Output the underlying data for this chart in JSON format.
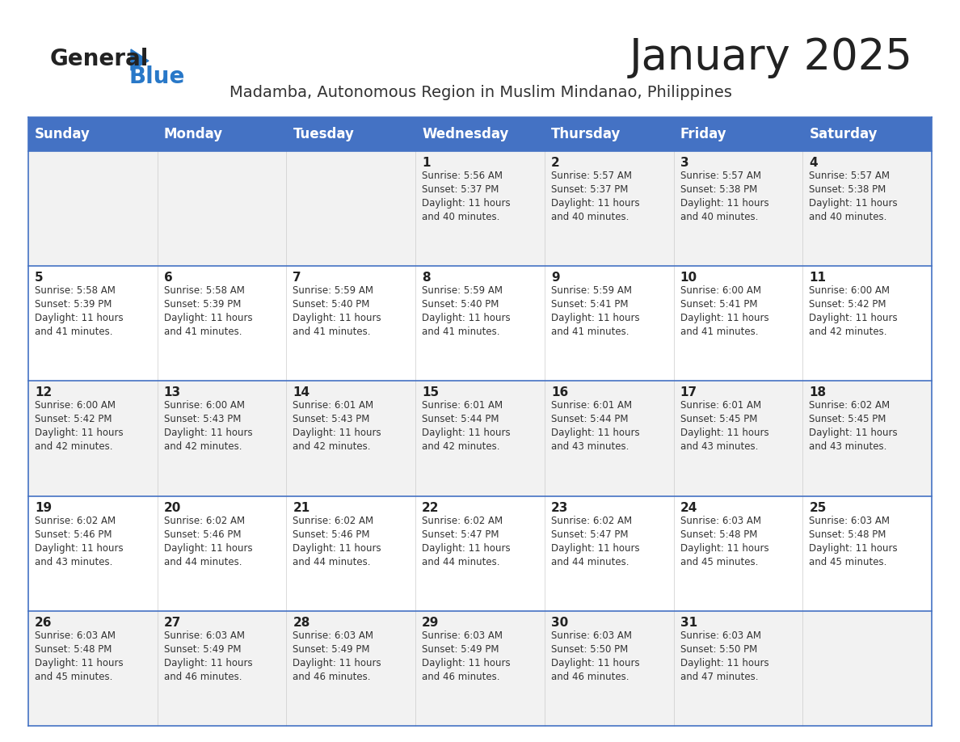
{
  "title": "January 2025",
  "subtitle": "Madamba, Autonomous Region in Muslim Mindanao, Philippines",
  "header_bg": "#4472C4",
  "header_text_color": "#FFFFFF",
  "row_bg_odd": "#F2F2F2",
  "row_bg_even": "#FFFFFF",
  "day_headers": [
    "Sunday",
    "Monday",
    "Tuesday",
    "Wednesday",
    "Thursday",
    "Friday",
    "Saturday"
  ],
  "calendar": [
    [
      {
        "day": "",
        "info": ""
      },
      {
        "day": "",
        "info": ""
      },
      {
        "day": "",
        "info": ""
      },
      {
        "day": "1",
        "info": "Sunrise: 5:56 AM\nSunset: 5:37 PM\nDaylight: 11 hours\nand 40 minutes."
      },
      {
        "day": "2",
        "info": "Sunrise: 5:57 AM\nSunset: 5:37 PM\nDaylight: 11 hours\nand 40 minutes."
      },
      {
        "day": "3",
        "info": "Sunrise: 5:57 AM\nSunset: 5:38 PM\nDaylight: 11 hours\nand 40 minutes."
      },
      {
        "day": "4",
        "info": "Sunrise: 5:57 AM\nSunset: 5:38 PM\nDaylight: 11 hours\nand 40 minutes."
      }
    ],
    [
      {
        "day": "5",
        "info": "Sunrise: 5:58 AM\nSunset: 5:39 PM\nDaylight: 11 hours\nand 41 minutes."
      },
      {
        "day": "6",
        "info": "Sunrise: 5:58 AM\nSunset: 5:39 PM\nDaylight: 11 hours\nand 41 minutes."
      },
      {
        "day": "7",
        "info": "Sunrise: 5:59 AM\nSunset: 5:40 PM\nDaylight: 11 hours\nand 41 minutes."
      },
      {
        "day": "8",
        "info": "Sunrise: 5:59 AM\nSunset: 5:40 PM\nDaylight: 11 hours\nand 41 minutes."
      },
      {
        "day": "9",
        "info": "Sunrise: 5:59 AM\nSunset: 5:41 PM\nDaylight: 11 hours\nand 41 minutes."
      },
      {
        "day": "10",
        "info": "Sunrise: 6:00 AM\nSunset: 5:41 PM\nDaylight: 11 hours\nand 41 minutes."
      },
      {
        "day": "11",
        "info": "Sunrise: 6:00 AM\nSunset: 5:42 PM\nDaylight: 11 hours\nand 42 minutes."
      }
    ],
    [
      {
        "day": "12",
        "info": "Sunrise: 6:00 AM\nSunset: 5:42 PM\nDaylight: 11 hours\nand 42 minutes."
      },
      {
        "day": "13",
        "info": "Sunrise: 6:00 AM\nSunset: 5:43 PM\nDaylight: 11 hours\nand 42 minutes."
      },
      {
        "day": "14",
        "info": "Sunrise: 6:01 AM\nSunset: 5:43 PM\nDaylight: 11 hours\nand 42 minutes."
      },
      {
        "day": "15",
        "info": "Sunrise: 6:01 AM\nSunset: 5:44 PM\nDaylight: 11 hours\nand 42 minutes."
      },
      {
        "day": "16",
        "info": "Sunrise: 6:01 AM\nSunset: 5:44 PM\nDaylight: 11 hours\nand 43 minutes."
      },
      {
        "day": "17",
        "info": "Sunrise: 6:01 AM\nSunset: 5:45 PM\nDaylight: 11 hours\nand 43 minutes."
      },
      {
        "day": "18",
        "info": "Sunrise: 6:02 AM\nSunset: 5:45 PM\nDaylight: 11 hours\nand 43 minutes."
      }
    ],
    [
      {
        "day": "19",
        "info": "Sunrise: 6:02 AM\nSunset: 5:46 PM\nDaylight: 11 hours\nand 43 minutes."
      },
      {
        "day": "20",
        "info": "Sunrise: 6:02 AM\nSunset: 5:46 PM\nDaylight: 11 hours\nand 44 minutes."
      },
      {
        "day": "21",
        "info": "Sunrise: 6:02 AM\nSunset: 5:46 PM\nDaylight: 11 hours\nand 44 minutes."
      },
      {
        "day": "22",
        "info": "Sunrise: 6:02 AM\nSunset: 5:47 PM\nDaylight: 11 hours\nand 44 minutes."
      },
      {
        "day": "23",
        "info": "Sunrise: 6:02 AM\nSunset: 5:47 PM\nDaylight: 11 hours\nand 44 minutes."
      },
      {
        "day": "24",
        "info": "Sunrise: 6:03 AM\nSunset: 5:48 PM\nDaylight: 11 hours\nand 45 minutes."
      },
      {
        "day": "25",
        "info": "Sunrise: 6:03 AM\nSunset: 5:48 PM\nDaylight: 11 hours\nand 45 minutes."
      }
    ],
    [
      {
        "day": "26",
        "info": "Sunrise: 6:03 AM\nSunset: 5:48 PM\nDaylight: 11 hours\nand 45 minutes."
      },
      {
        "day": "27",
        "info": "Sunrise: 6:03 AM\nSunset: 5:49 PM\nDaylight: 11 hours\nand 46 minutes."
      },
      {
        "day": "28",
        "info": "Sunrise: 6:03 AM\nSunset: 5:49 PM\nDaylight: 11 hours\nand 46 minutes."
      },
      {
        "day": "29",
        "info": "Sunrise: 6:03 AM\nSunset: 5:49 PM\nDaylight: 11 hours\nand 46 minutes."
      },
      {
        "day": "30",
        "info": "Sunrise: 6:03 AM\nSunset: 5:50 PM\nDaylight: 11 hours\nand 46 minutes."
      },
      {
        "day": "31",
        "info": "Sunrise: 6:03 AM\nSunset: 5:50 PM\nDaylight: 11 hours\nand 47 minutes."
      },
      {
        "day": "",
        "info": ""
      }
    ]
  ],
  "logo_text1": "General",
  "logo_text2": "Blue",
  "logo_text1_color": "#222222",
  "logo_text2_color": "#2878C8",
  "logo_triangle_color": "#2878C8",
  "cell_border_color": "#4472C4",
  "cell_text_color": "#333333",
  "day_num_color": "#222222",
  "title_color": "#222222",
  "subtitle_color": "#333333"
}
